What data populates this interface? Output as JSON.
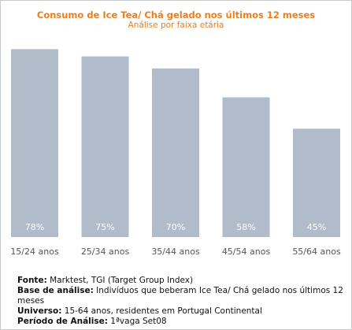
{
  "chart_data": {
    "type": "bar",
    "title": "Consumo de Ice Tea/ Chá gelado nos últimos 12 meses",
    "subtitle": "Análise por faixa etária",
    "categories": [
      "15/24 anos",
      "25/34 anos",
      "35/44 anos",
      "45/54 anos",
      "55/64 anos"
    ],
    "values": [
      78,
      75,
      70,
      58,
      45
    ],
    "value_labels": [
      "78%",
      "75%",
      "70%",
      "58%",
      "45%"
    ],
    "unit": "%",
    "ylim": [
      0,
      85
    ],
    "grid": false,
    "legend": "none",
    "colors": {
      "bar": "#b1bccb",
      "value_label": "#ffffff",
      "category_label": "#555555",
      "title": "#f07d18"
    }
  },
  "notes": [
    {
      "label": "Fonte:",
      "text": "Marktest, TGI (Target Group Index)"
    },
    {
      "label": "Base de análise:",
      "text": "Indivíduos que beberam Ice Tea/ Chá gelado nos últimos 12 meses"
    },
    {
      "label": "Universo:",
      "text": "15-64 anos, residentes em Portugal Continental"
    },
    {
      "label": "Período de Análise:",
      "text": "1ªvaga Set08"
    }
  ]
}
